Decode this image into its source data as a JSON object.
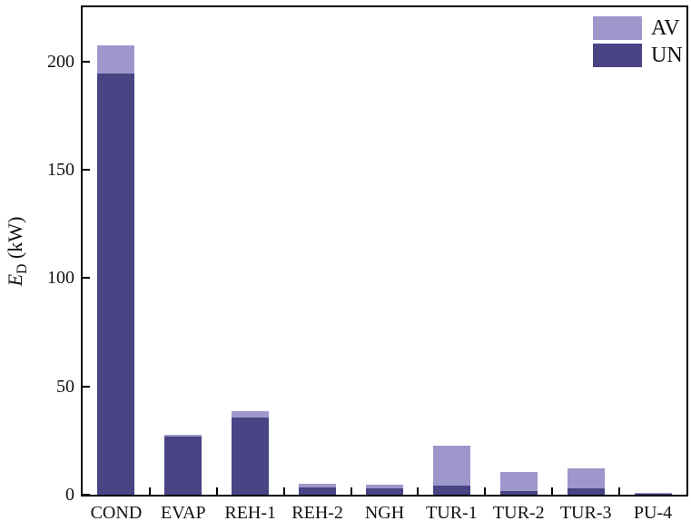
{
  "figure": {
    "background": "#ffffff",
    "frame_color": "#000000"
  },
  "axis": {
    "y_label_main": "E",
    "y_label_sub": "D",
    "y_label_unit": " (kW)"
  },
  "chart_data": {
    "type": "bar",
    "stacked": true,
    "title": "",
    "xlabel": "",
    "ylabel": "E_D (kW)",
    "categories": [
      "COND",
      "EVAP",
      "REH-1",
      "REH-2",
      "NGH",
      "TUR-1",
      "TUR-2",
      "TUR-3",
      "PU-4"
    ],
    "series": [
      {
        "name": "UN",
        "color": "#494484",
        "values": [
          194.5,
          26.7,
          35.6,
          3.2,
          3.1,
          4.2,
          1.8,
          2.8,
          0.3
        ]
      },
      {
        "name": "AV",
        "color": "#9e97cc",
        "values": [
          13.0,
          0.8,
          3.1,
          1.7,
          1.5,
          18.5,
          8.6,
          9.4,
          0.4
        ]
      }
    ],
    "yticks": [
      0,
      50,
      100,
      150,
      200
    ],
    "ylim": [
      0,
      225
    ],
    "grid": false,
    "legend_position": "top-right",
    "legend_frame": false,
    "legend_order": [
      "AV",
      "UN"
    ],
    "colors": {
      "AV": "#9e97cc",
      "UN": "#494484"
    },
    "tick_direction": "in"
  }
}
